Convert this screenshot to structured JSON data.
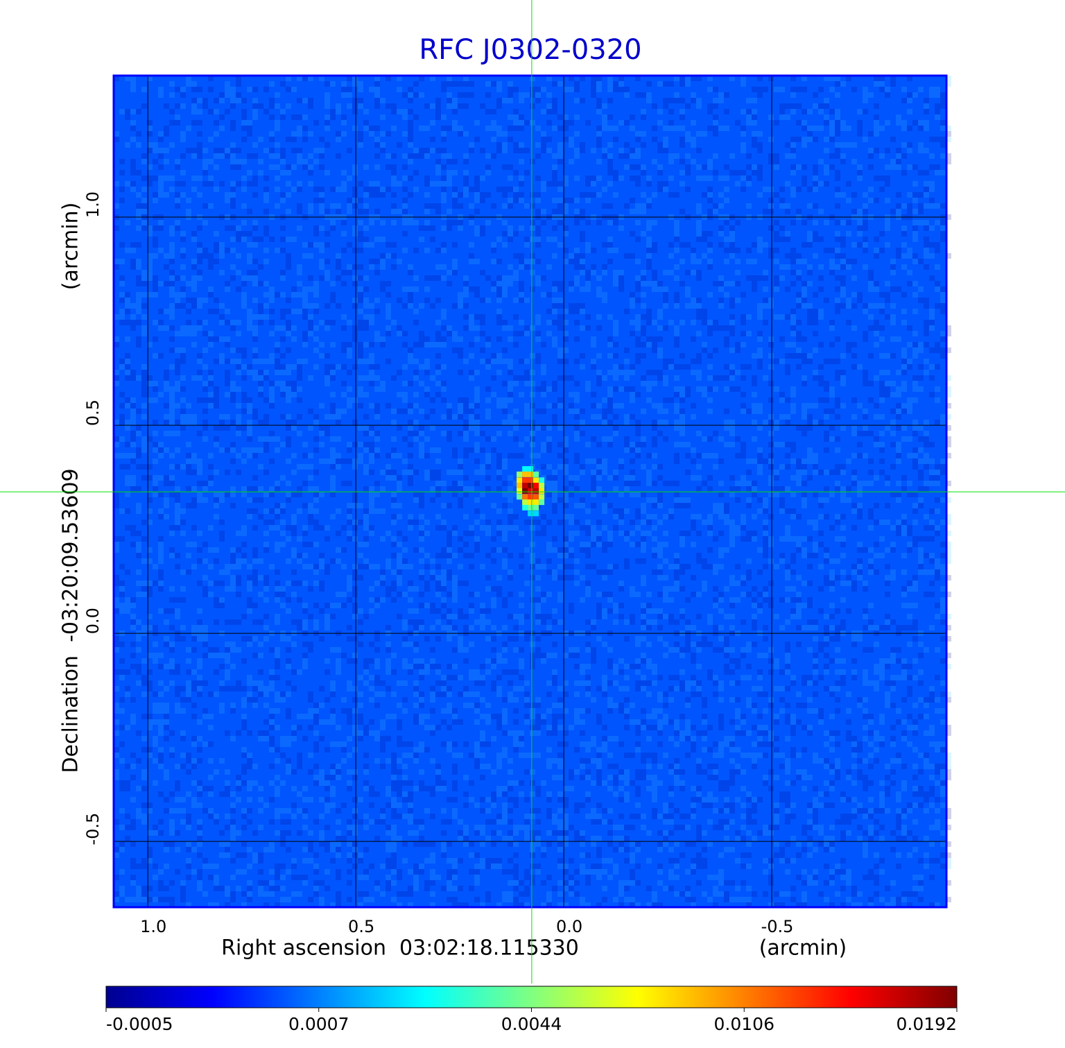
{
  "chart_data": {
    "type": "image",
    "title": "RFC J0302-0320",
    "x_label": "Right ascension  03:02:18.115330",
    "x_unit": "(arcmin)",
    "y_label": "Declination  -03:20:09.53609",
    "y_unit": "(arcmin)",
    "xlim": [
      1.082,
      -0.92
    ],
    "ylim": [
      -0.658,
      1.34
    ],
    "xticks": [
      {
        "value": 1,
        "label": "1.0"
      },
      0.5,
      {
        "value": 0,
        "label": "0.0"
      },
      -0.5
    ],
    "yticks": [
      -0.5,
      {
        "value": 0,
        "label": "0.0"
      },
      0.5,
      {
        "value": 1,
        "label": "1.0"
      }
    ],
    "grid": true,
    "background_value": 0.0005,
    "pixels": {
      "x": [
        0.0933,
        0.08,
        0.1067,
        0.0933,
        0.08,
        0.0667,
        0.1067,
        0.0933,
        0.08,
        0.0667,
        0.0533,
        0.1067,
        0.0933,
        0.08,
        0.0667,
        0.0533,
        0.1067,
        0.0933,
        0.08,
        0.0667,
        0.0533,
        0.1067,
        0.0933,
        0.08,
        0.0667,
        0.0533,
        0.0933,
        0.08,
        0.0667,
        0.0533,
        0.0933,
        0.08,
        0.0667,
        0.08,
        0.0667
      ],
      "y": [
        0.395,
        0.395,
        0.382,
        0.382,
        0.382,
        0.382,
        0.368,
        0.368,
        0.368,
        0.368,
        0.368,
        0.355,
        0.355,
        0.355,
        0.355,
        0.355,
        0.342,
        0.342,
        0.342,
        0.342,
        0.342,
        0.328,
        0.328,
        0.328,
        0.328,
        0.328,
        0.315,
        0.315,
        0.315,
        0.315,
        0.302,
        0.302,
        0.302,
        0.288,
        0.288
      ],
      "values": [
        0.0025,
        0.0025,
        0.005,
        0.009,
        0.009,
        0.004,
        0.008,
        0.013,
        0.013,
        0.008,
        0.003,
        0.009,
        0.017,
        0.0192,
        0.015,
        0.006,
        0.007,
        0.0192,
        0.016,
        0.017,
        0.008,
        0.004,
        0.011,
        0.013,
        0.012,
        0.006,
        0.006,
        0.008,
        0.008,
        0.004,
        0.003,
        0.004,
        0.004,
        0.002,
        0.002
      ]
    },
    "crosshair": {
      "x": 0.077,
      "y": 0.34,
      "color": "#00e000"
    },
    "colorbar_ticks": [
      -0.0005,
      0.0007,
      0.0044,
      0.0106,
      0.0192
    ],
    "colormap": [
      "#00008f",
      "#0000ff",
      "#0080ff",
      "#00ffff",
      "#80ff80",
      "#ffff00",
      "#ff8000",
      "#ff0000",
      "#800000"
    ]
  }
}
